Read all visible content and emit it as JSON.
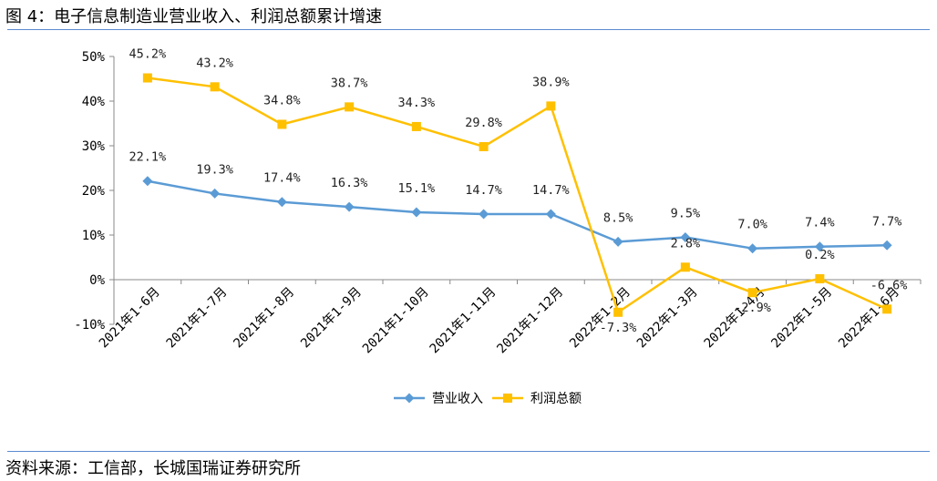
{
  "header": {
    "title": "图 4：电子信息制造业营业收入、利润总额累计增速"
  },
  "footer": {
    "source": "资料来源：工信部，长城国瑞证券研究所"
  },
  "chart_data": {
    "type": "line",
    "title": "",
    "xlabel": "",
    "ylabel": "",
    "categories": [
      "2021年1-6月",
      "2021年1-7月",
      "2021年1-8月",
      "2021年1-9月",
      "2021年1-10月",
      "2021年1-11月",
      "2021年1-12月",
      "2022年1-2月",
      "2022年1-3月",
      "2022年1-4月",
      "2022年1-5月",
      "2022年1-6月"
    ],
    "y_ticks": [
      "50%",
      "40%",
      "30%",
      "20%",
      "10%",
      "0%",
      "-10%"
    ],
    "ylim": [
      -10,
      50
    ],
    "grid": false,
    "legend_position": "bottom-center",
    "series": [
      {
        "name": "营业收入",
        "color": "#5b9bd5",
        "marker": "diamond",
        "values": [
          22.1,
          19.3,
          17.4,
          16.3,
          15.1,
          14.7,
          14.7,
          8.5,
          9.5,
          7.0,
          7.4,
          7.7
        ],
        "labels": [
          "22.1%",
          "19.3%",
          "17.4%",
          "16.3%",
          "15.1%",
          "14.7%",
          "14.7%",
          "8.5%",
          "9.5%",
          "7.0%",
          "7.4%",
          "7.7%"
        ]
      },
      {
        "name": "利润总额",
        "color": "#ffc000",
        "marker": "square",
        "values": [
          45.2,
          43.2,
          34.8,
          38.7,
          34.3,
          29.8,
          38.9,
          -7.3,
          2.8,
          -2.9,
          0.2,
          -6.6
        ],
        "labels": [
          "45.2%",
          "43.2%",
          "34.8%",
          "38.7%",
          "34.3%",
          "29.8%",
          "38.9%",
          "-7.3%",
          "2.8%",
          "-2.9%",
          "0.2%",
          "-6.6%"
        ]
      }
    ]
  }
}
